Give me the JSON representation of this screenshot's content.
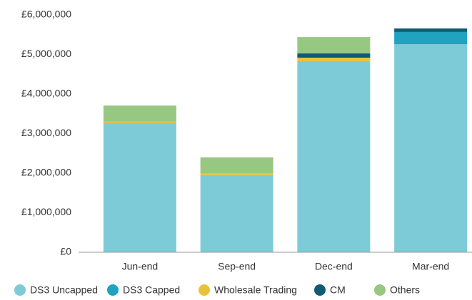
{
  "chart_data": {
    "type": "stacked_bar",
    "categories": [
      "Jun-end",
      "Sep-end",
      "Dec-end",
      "Mar-end"
    ],
    "series": [
      {
        "name": "DS3 Uncapped",
        "color": "#7ecbd8",
        "values": [
          3270000,
          1950000,
          4830000,
          5260000
        ]
      },
      {
        "name": "DS3 Capped",
        "color": "#1fa3bf",
        "values": [
          0,
          0,
          0,
          310000
        ]
      },
      {
        "name": "Wholesale Trading",
        "color": "#e8c33a",
        "values": [
          30000,
          50000,
          90000,
          0
        ]
      },
      {
        "name": "CM",
        "color": "#0f5b74",
        "values": [
          0,
          0,
          110000,
          90000
        ]
      },
      {
        "name": "Others",
        "color": "#96c882",
        "values": [
          410000,
          400000,
          410000,
          0
        ]
      }
    ],
    "ylim": [
      0,
      6000000
    ],
    "yticks": [
      {
        "value": 0,
        "label": "£0"
      },
      {
        "value": 1000000,
        "label": "£1,000,000"
      },
      {
        "value": 2000000,
        "label": "£2,000,000"
      },
      {
        "value": 3000000,
        "label": "£3,000,000"
      },
      {
        "value": 4000000,
        "label": "£4,000,000"
      },
      {
        "value": 5000000,
        "label": "£5,000,000"
      },
      {
        "value": 6000000,
        "label": "£6,000,000"
      }
    ],
    "grid": false,
    "legend": "bottom"
  }
}
